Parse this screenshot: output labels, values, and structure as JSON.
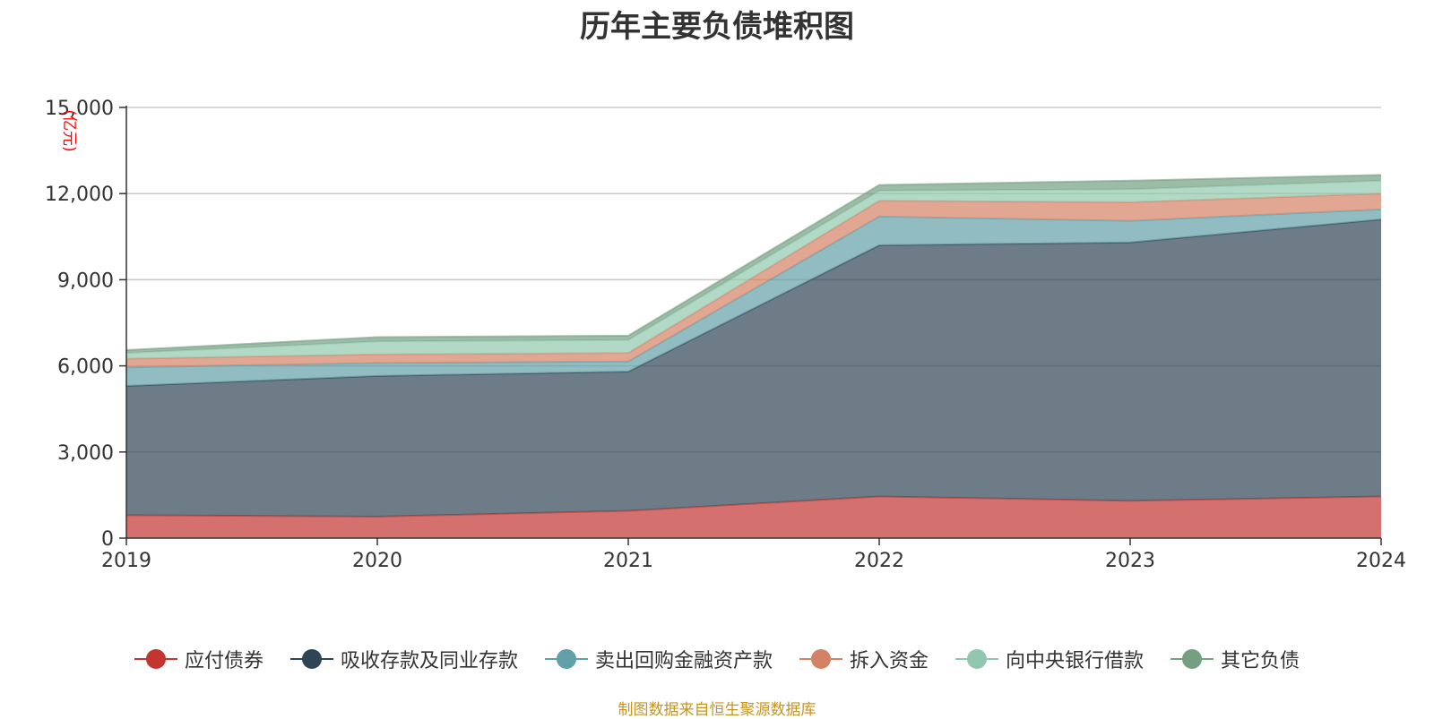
{
  "chart_data": {
    "type": "area",
    "stacked": true,
    "title": "历年主要负债堆积图",
    "ylabel": "(亿元)",
    "ylim": [
      0,
      15000
    ],
    "yticks": [
      "0",
      "3,000",
      "6,000",
      "9,000",
      "12,000",
      "15,000"
    ],
    "ytick_values": [
      0,
      3000,
      6000,
      9000,
      12000,
      15000
    ],
    "x": [
      "2019",
      "2020",
      "2021",
      "2022",
      "2023",
      "2024"
    ],
    "grid": true,
    "legend_position": "bottom",
    "series": [
      {
        "name": "应付债券",
        "color": "#c23531",
        "values": [
          800,
          750,
          950,
          1450,
          1300,
          1450
        ]
      },
      {
        "name": "吸收存款及同业存款",
        "color": "#2f4554",
        "values": [
          4500,
          4900,
          4850,
          8750,
          9000,
          9650
        ]
      },
      {
        "name": "卖出回购金融资产款",
        "color": "#61a0a8",
        "values": [
          650,
          450,
          350,
          1000,
          750,
          350
        ]
      },
      {
        "name": "拆入资金",
        "color": "#d48265",
        "values": [
          300,
          300,
          300,
          550,
          650,
          550
        ]
      },
      {
        "name": "向中央银行借款",
        "color": "#91c7ae",
        "values": [
          200,
          450,
          450,
          350,
          450,
          450
        ]
      },
      {
        "name": "其它负债",
        "color": "#749f83",
        "values": [
          100,
          150,
          150,
          200,
          300,
          200
        ]
      }
    ]
  },
  "source": "制图数据来自恒生聚源数据库"
}
